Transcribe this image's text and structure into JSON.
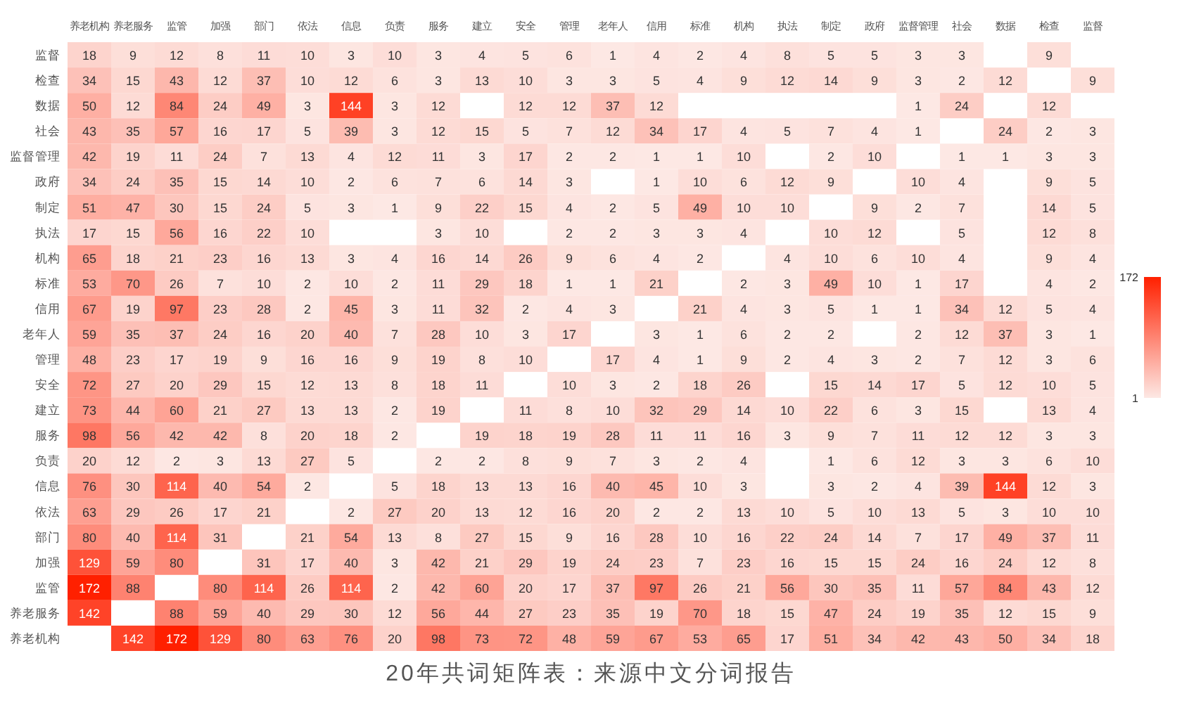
{
  "chart_data": {
    "type": "heatmap",
    "title": "20年共词矩阵表：来源中文分词报告",
    "categories": [
      "养老机构",
      "养老服务",
      "监管",
      "加强",
      "部门",
      "依法",
      "信息",
      "负责",
      "服务",
      "建立",
      "安全",
      "管理",
      "老年人",
      "信用",
      "标准",
      "机构",
      "执法",
      "制定",
      "政府",
      "监督管理",
      "社会",
      "数据",
      "检查",
      "监督"
    ],
    "y_categories": [
      "监督",
      "检查",
      "数据",
      "社会",
      "监督管理",
      "政府",
      "制定",
      "执法",
      "机构",
      "标准",
      "信用",
      "老年人",
      "管理",
      "安全",
      "建立",
      "服务",
      "负责",
      "信息",
      "依法",
      "部门",
      "加强",
      "监管",
      "养老服务",
      "养老机构"
    ],
    "cells": [
      [
        18,
        9,
        12,
        8,
        11,
        10,
        3,
        10,
        3,
        4,
        5,
        6,
        1,
        4,
        2,
        4,
        8,
        5,
        5,
        3,
        3,
        null,
        9,
        null
      ],
      [
        34,
        15,
        43,
        12,
        37,
        10,
        12,
        6,
        3,
        13,
        10,
        3,
        3,
        5,
        4,
        9,
        12,
        14,
        9,
        3,
        2,
        12,
        null,
        9
      ],
      [
        50,
        12,
        84,
        24,
        49,
        3,
        144,
        3,
        12,
        null,
        12,
        12,
        37,
        12,
        null,
        null,
        null,
        null,
        null,
        1,
        24,
        null,
        12,
        null
      ],
      [
        43,
        35,
        57,
        16,
        17,
        5,
        39,
        3,
        12,
        15,
        5,
        7,
        12,
        34,
        17,
        4,
        5,
        7,
        4,
        1,
        null,
        24,
        2,
        3
      ],
      [
        42,
        19,
        11,
        24,
        7,
        13,
        4,
        12,
        11,
        3,
        17,
        2,
        2,
        1,
        1,
        10,
        null,
        2,
        10,
        null,
        1,
        1,
        3,
        3
      ],
      [
        34,
        24,
        35,
        15,
        14,
        10,
        2,
        6,
        7,
        6,
        14,
        3,
        null,
        1,
        10,
        6,
        12,
        9,
        null,
        10,
        4,
        null,
        9,
        5
      ],
      [
        51,
        47,
        30,
        15,
        24,
        5,
        3,
        1,
        9,
        22,
        15,
        4,
        2,
        5,
        49,
        10,
        10,
        null,
        9,
        2,
        7,
        null,
        14,
        5
      ],
      [
        17,
        15,
        56,
        16,
        22,
        10,
        null,
        null,
        3,
        10,
        null,
        2,
        2,
        3,
        3,
        4,
        null,
        10,
        12,
        null,
        5,
        null,
        12,
        8
      ],
      [
        65,
        18,
        21,
        23,
        16,
        13,
        3,
        4,
        16,
        14,
        26,
        9,
        6,
        4,
        2,
        null,
        4,
        10,
        6,
        10,
        4,
        null,
        9,
        4
      ],
      [
        53,
        70,
        26,
        7,
        10,
        2,
        10,
        2,
        11,
        29,
        18,
        1,
        1,
        21,
        null,
        2,
        3,
        49,
        10,
        1,
        17,
        null,
        4,
        2
      ],
      [
        67,
        19,
        97,
        23,
        28,
        2,
        45,
        3,
        11,
        32,
        2,
        4,
        3,
        null,
        21,
        4,
        3,
        5,
        1,
        1,
        34,
        12,
        5,
        4
      ],
      [
        59,
        35,
        37,
        24,
        16,
        20,
        40,
        7,
        28,
        10,
        3,
        17,
        null,
        3,
        1,
        6,
        2,
        2,
        null,
        2,
        12,
        37,
        3,
        1
      ],
      [
        48,
        23,
        17,
        19,
        9,
        16,
        16,
        9,
        19,
        8,
        10,
        null,
        17,
        4,
        1,
        9,
        2,
        4,
        3,
        2,
        7,
        12,
        3,
        6
      ],
      [
        72,
        27,
        20,
        29,
        15,
        12,
        13,
        8,
        18,
        11,
        null,
        10,
        3,
        2,
        18,
        26,
        null,
        15,
        14,
        17,
        5,
        12,
        10,
        5
      ],
      [
        73,
        44,
        60,
        21,
        27,
        13,
        13,
        2,
        19,
        null,
        11,
        8,
        10,
        32,
        29,
        14,
        10,
        22,
        6,
        3,
        15,
        null,
        13,
        4
      ],
      [
        98,
        56,
        42,
        42,
        8,
        20,
        18,
        2,
        null,
        19,
        18,
        19,
        28,
        11,
        11,
        16,
        3,
        9,
        7,
        11,
        12,
        12,
        3,
        3
      ],
      [
        20,
        12,
        2,
        3,
        13,
        27,
        5,
        null,
        2,
        2,
        8,
        9,
        7,
        3,
        2,
        4,
        null,
        1,
        6,
        12,
        3,
        3,
        6,
        10
      ],
      [
        76,
        30,
        114,
        40,
        54,
        2,
        null,
        5,
        18,
        13,
        13,
        16,
        40,
        45,
        10,
        3,
        null,
        3,
        2,
        4,
        39,
        144,
        12,
        3
      ],
      [
        63,
        29,
        26,
        17,
        21,
        null,
        2,
        27,
        20,
        13,
        12,
        16,
        20,
        2,
        2,
        13,
        10,
        5,
        10,
        13,
        5,
        3,
        10,
        10
      ],
      [
        80,
        40,
        114,
        31,
        null,
        21,
        54,
        13,
        8,
        27,
        15,
        9,
        16,
        28,
        10,
        16,
        22,
        24,
        14,
        7,
        17,
        49,
        37,
        11
      ],
      [
        129,
        59,
        80,
        null,
        31,
        17,
        40,
        3,
        42,
        21,
        29,
        19,
        24,
        23,
        7,
        23,
        16,
        15,
        15,
        24,
        16,
        24,
        12,
        8
      ],
      [
        172,
        88,
        null,
        80,
        114,
        26,
        114,
        2,
        42,
        60,
        20,
        17,
        37,
        97,
        26,
        21,
        56,
        30,
        35,
        11,
        57,
        84,
        43,
        12
      ],
      [
        142,
        null,
        88,
        59,
        40,
        29,
        30,
        12,
        56,
        44,
        27,
        23,
        35,
        19,
        70,
        18,
        15,
        47,
        24,
        19,
        35,
        12,
        15,
        9
      ],
      [
        null,
        142,
        172,
        129,
        80,
        63,
        76,
        20,
        98,
        73,
        72,
        48,
        59,
        67,
        53,
        65,
        17,
        51,
        34,
        42,
        43,
        50,
        34,
        18
      ]
    ],
    "clim": [
      1,
      172
    ],
    "cticks": [
      1,
      172
    ],
    "colors": [
      "#fde8e4",
      "#ff2000"
    ],
    "data_labels": true
  }
}
